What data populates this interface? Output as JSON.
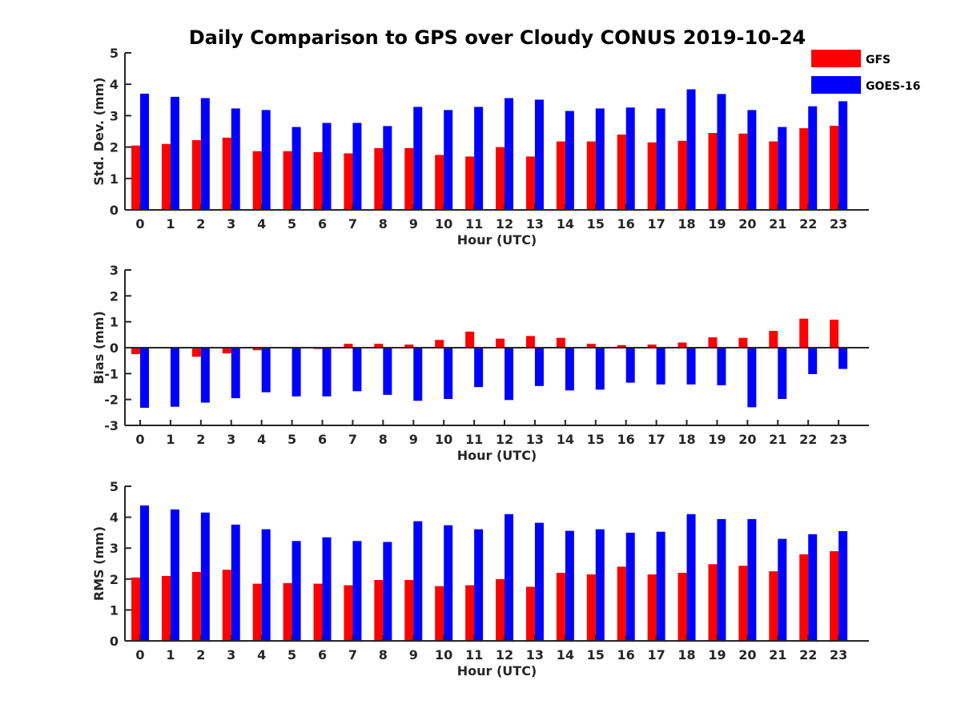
{
  "chart_data": {
    "type": "bar",
    "title": "Daily Comparison to GPS over Cloudy CONUS 2019-10-24",
    "legend": {
      "placement": "top-right",
      "entries": [
        {
          "name": "GFS",
          "color": "#ff0000"
        },
        {
          "name": "GOES-16",
          "color": "#0000ff"
        }
      ]
    },
    "categories": [
      "0",
      "1",
      "2",
      "3",
      "4",
      "5",
      "6",
      "7",
      "8",
      "9",
      "10",
      "11",
      "12",
      "13",
      "14",
      "15",
      "16",
      "17",
      "18",
      "19",
      "20",
      "21",
      "22",
      "23"
    ],
    "panels": [
      {
        "id": "stddev",
        "xlabel": "Hour (UTC)",
        "ylabel": "Std. Dev. (mm)",
        "ylim": [
          0,
          5
        ],
        "yticks": [
          0,
          1,
          2,
          3,
          4,
          5
        ],
        "series": [
          {
            "name": "GFS",
            "color": "#ff0000",
            "values": [
              2.05,
              2.1,
              2.22,
              2.3,
              1.87,
              1.87,
              1.84,
              1.8,
              1.97,
              1.97,
              1.75,
              1.7,
              2.0,
              1.7,
              2.18,
              2.18,
              2.4,
              2.15,
              2.2,
              2.45,
              2.43,
              2.18,
              2.6,
              2.68
            ]
          },
          {
            "name": "GOES-16",
            "color": "#0000ff",
            "values": [
              3.7,
              3.6,
              3.56,
              3.23,
              3.18,
              2.64,
              2.77,
              2.77,
              2.67,
              3.28,
              3.18,
              3.28,
              3.56,
              3.51,
              3.15,
              3.23,
              3.26,
              3.23,
              3.84,
              3.69,
              3.18,
              2.64,
              3.3,
              3.46
            ]
          }
        ]
      },
      {
        "id": "bias",
        "xlabel": "Hour (UTC)",
        "ylabel": "Bias (mm)",
        "ylim": [
          -3,
          3
        ],
        "yticks": [
          -3,
          -2,
          -1,
          0,
          1,
          2,
          3
        ],
        "series": [
          {
            "name": "GFS",
            "color": "#ff0000",
            "values": [
              -0.25,
              0.0,
              -0.35,
              -0.22,
              -0.1,
              0.02,
              -0.05,
              0.15,
              0.15,
              0.12,
              0.3,
              0.62,
              0.35,
              0.45,
              0.38,
              0.15,
              0.1,
              0.12,
              0.2,
              0.4,
              0.38,
              0.65,
              1.12,
              1.08
            ]
          },
          {
            "name": "GOES-16",
            "color": "#0000ff",
            "values": [
              -2.32,
              -2.28,
              -2.12,
              -1.95,
              -1.72,
              -1.88,
              -1.88,
              -1.68,
              -1.82,
              -2.05,
              -1.98,
              -1.52,
              -2.02,
              -1.48,
              -1.65,
              -1.62,
              -1.35,
              -1.42,
              -1.42,
              -1.45,
              -2.3,
              -1.98,
              -1.02,
              -0.82
            ]
          }
        ]
      },
      {
        "id": "rms",
        "xlabel": "Hour (UTC)",
        "ylabel": "RMS (mm)",
        "ylim": [
          0,
          5
        ],
        "yticks": [
          0,
          1,
          2,
          3,
          4,
          5
        ],
        "series": [
          {
            "name": "GFS",
            "color": "#ff0000",
            "values": [
              2.05,
              2.1,
              2.23,
              2.3,
              1.85,
              1.87,
              1.85,
              1.8,
              1.97,
              1.97,
              1.77,
              1.8,
              2.0,
              1.75,
              2.2,
              2.15,
              2.4,
              2.15,
              2.2,
              2.48,
              2.43,
              2.25,
              2.8,
              2.9
            ]
          },
          {
            "name": "GOES-16",
            "color": "#0000ff",
            "values": [
              4.38,
              4.25,
              4.15,
              3.76,
              3.61,
              3.23,
              3.35,
              3.23,
              3.2,
              3.87,
              3.74,
              3.61,
              4.1,
              3.82,
              3.56,
              3.61,
              3.5,
              3.53,
              4.1,
              3.94,
              3.94,
              3.3,
              3.45,
              3.55
            ]
          }
        ]
      }
    ]
  }
}
